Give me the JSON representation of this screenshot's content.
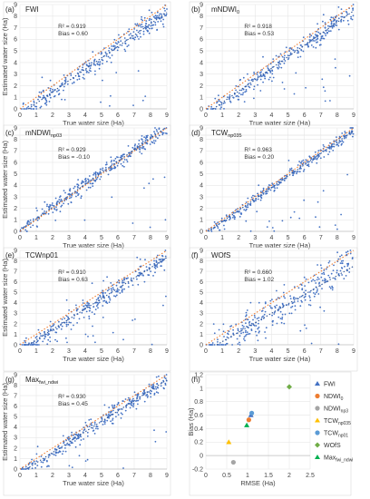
{
  "chart_data": [
    {
      "type": "scatter",
      "panel_label": "(a)",
      "title": "FWI",
      "xlabel": "True water size (Ha)",
      "ylabel": "Estimated water size (Ha)",
      "xlim": [
        0,
        9
      ],
      "ylim": [
        0,
        9
      ],
      "xticks": [
        "0",
        "1",
        "2",
        "3",
        "4",
        "5",
        "6",
        "7",
        "8",
        "9"
      ],
      "yticks": [
        "0",
        "1",
        "2",
        "3",
        "4",
        "5",
        "6",
        "7",
        "8",
        "9"
      ],
      "stats": [
        "R² = 0.919",
        "Bias = 0.60"
      ],
      "fit": {
        "slope": 0.98,
        "intercept": -0.5
      },
      "reference_line": "1:1",
      "points_summary": {
        "n": 300,
        "bias": 0.6,
        "spread": 0.55
      },
      "grid": true
    },
    {
      "type": "scatter",
      "panel_label": "(b)",
      "title": "mNDWI",
      "title_sub": "0",
      "xlabel": "True water size (Ha)",
      "ylabel": "",
      "xlim": [
        0,
        9
      ],
      "ylim": [
        0,
        9
      ],
      "xticks": [
        "0",
        "1",
        "2",
        "3",
        "4",
        "5",
        "6",
        "7",
        "8",
        "9"
      ],
      "yticks": [
        "0",
        "1",
        "2",
        "3",
        "4",
        "5",
        "6",
        "7",
        "8",
        "9"
      ],
      "stats": [
        "R² = 0.918",
        "Bias = 0.53"
      ],
      "fit": {
        "slope": 0.99,
        "intercept": -0.45
      },
      "reference_line": "1:1",
      "points_summary": {
        "n": 300,
        "bias": 0.53,
        "spread": 0.55
      },
      "grid": true
    },
    {
      "type": "scatter",
      "panel_label": "(c)",
      "title": "mNDWI",
      "title_sub": "np03",
      "xlabel": "True water size (Ha)",
      "ylabel": "Estimated water size (Ha)",
      "xlim": [
        0,
        9
      ],
      "ylim": [
        0,
        9
      ],
      "xticks": [
        "0",
        "1",
        "2",
        "3",
        "4",
        "5",
        "6",
        "7",
        "8",
        "9"
      ],
      "yticks": [
        "0",
        "1",
        "2",
        "3",
        "4",
        "5",
        "6",
        "7",
        "8",
        "9"
      ],
      "stats": [
        "R² = 0.929",
        "Bias = -0.10"
      ],
      "fit": {
        "slope": 1.0,
        "intercept": 0.1
      },
      "reference_line": "1:1",
      "points_summary": {
        "n": 300,
        "bias": -0.1,
        "spread": 0.5
      },
      "grid": true
    },
    {
      "type": "scatter",
      "panel_label": "(d)",
      "title": "TCW",
      "title_sub": "np035",
      "xlabel": "True water size (Ha)",
      "ylabel": "",
      "xlim": [
        0,
        9
      ],
      "ylim": [
        0,
        9
      ],
      "xticks": [
        "0",
        "1",
        "2",
        "3",
        "4",
        "5",
        "6",
        "7",
        "8",
        "9"
      ],
      "yticks": [
        "0",
        "1",
        "2",
        "3",
        "4",
        "5",
        "6",
        "7",
        "8",
        "9"
      ],
      "stats": [
        "R² = 0.963",
        "Bias = 0.20"
      ],
      "fit": {
        "slope": 0.99,
        "intercept": -0.15
      },
      "reference_line": "1:1",
      "points_summary": {
        "n": 300,
        "bias": 0.2,
        "spread": 0.35
      },
      "grid": true
    },
    {
      "type": "scatter",
      "panel_label": "(e)",
      "title": "TCWnp01",
      "xlabel": "True water size (Ha)",
      "ylabel": "Estimated water size (Ha)",
      "xlim": [
        0,
        9
      ],
      "ylim": [
        0,
        9
      ],
      "xticks": [
        "0",
        "1",
        "2",
        "3",
        "4",
        "5",
        "6",
        "7",
        "8",
        "9"
      ],
      "yticks": [
        "0",
        "1",
        "2",
        "3",
        "4",
        "5",
        "6",
        "7",
        "8",
        "9"
      ],
      "stats": [
        "R² = 0.910",
        "Bias = 0.63"
      ],
      "fit": {
        "slope": 0.98,
        "intercept": -0.5
      },
      "reference_line": "1:1",
      "points_summary": {
        "n": 300,
        "bias": 0.63,
        "spread": 0.6
      },
      "grid": true
    },
    {
      "type": "scatter",
      "panel_label": "(f)",
      "title": "WOfS",
      "xlabel": "True water size (Ha)",
      "ylabel": "",
      "xlim": [
        0,
        9
      ],
      "ylim": [
        0,
        9
      ],
      "xticks": [
        "0",
        "1",
        "2",
        "3",
        "4",
        "5",
        "6",
        "7",
        "8",
        "9"
      ],
      "yticks": [
        "0",
        "1",
        "2",
        "3",
        "4",
        "5",
        "6",
        "7",
        "8",
        "9"
      ],
      "stats": [
        "R² = 0.660",
        "Bias = 1.02"
      ],
      "fit": {
        "slope": 0.9,
        "intercept": -0.6
      },
      "reference_line": "1:1",
      "points_summary": {
        "n": 300,
        "bias": 1.02,
        "spread": 1.1
      },
      "grid": true
    },
    {
      "type": "scatter",
      "panel_label": "(g)",
      "title": "Max",
      "title_sub": "fwi_ndwi",
      "xlabel": "True water size (Ha)",
      "ylabel": "Estimated water size (Ha)",
      "xlim": [
        0,
        9
      ],
      "ylim": [
        0,
        9
      ],
      "xticks": [
        "0",
        "1",
        "2",
        "3",
        "4",
        "5",
        "6",
        "7",
        "8",
        "9"
      ],
      "yticks": [
        "0",
        "1",
        "2",
        "3",
        "4",
        "5",
        "6",
        "7",
        "8",
        "9"
      ],
      "stats": [
        "R² = 0.930",
        "Bias = 0.45"
      ],
      "fit": {
        "slope": 0.99,
        "intercept": -0.4
      },
      "reference_line": "1:1",
      "points_summary": {
        "n": 300,
        "bias": 0.45,
        "spread": 0.5
      },
      "grid": true
    },
    {
      "type": "scatter",
      "panel_label": "(h)",
      "title": "",
      "xlabel": "RMSE (Ha)",
      "ylabel": "Bias (Ha)",
      "xlim": [
        0,
        2.5
      ],
      "ylim": [
        -0.2,
        1.2
      ],
      "xticks": [
        "0",
        "0.5",
        "1",
        "1.5",
        "2",
        "2.5"
      ],
      "yticks": [
        "-0.2",
        "0",
        "0.2",
        "0.4",
        "0.6",
        "0.8",
        "1",
        "1.2"
      ],
      "grid": true,
      "legend_position": "right",
      "series": [
        {
          "name": "FWI",
          "sub": "",
          "color": "#4472c4",
          "marker": "triangle",
          "x": [
            1.08
          ],
          "y": [
            0.6
          ]
        },
        {
          "name": "NDWI",
          "sub": "0",
          "color": "#ed7d31",
          "marker": "circle",
          "x": [
            1.03
          ],
          "y": [
            0.53
          ]
        },
        {
          "name": "NDWI",
          "sub": "np3",
          "color": "#a5a5a5",
          "marker": "circle",
          "x": [
            0.66
          ],
          "y": [
            -0.1
          ]
        },
        {
          "name": "TCW",
          "sub": "np035",
          "color": "#ffc000",
          "marker": "triangle",
          "x": [
            0.55
          ],
          "y": [
            0.2
          ]
        },
        {
          "name": "TCW",
          "sub": "np01",
          "color": "#5b9bd5",
          "marker": "circle",
          "x": [
            1.1
          ],
          "y": [
            0.63
          ]
        },
        {
          "name": "WOfS",
          "sub": "",
          "color": "#70ad47",
          "marker": "diamond",
          "x": [
            2.0
          ],
          "y": [
            1.02
          ]
        },
        {
          "name": "Max",
          "sub": "fwi_ndwi",
          "color": "#00b050",
          "marker": "triangle",
          "x": [
            0.98
          ],
          "y": [
            0.45
          ]
        }
      ]
    }
  ]
}
